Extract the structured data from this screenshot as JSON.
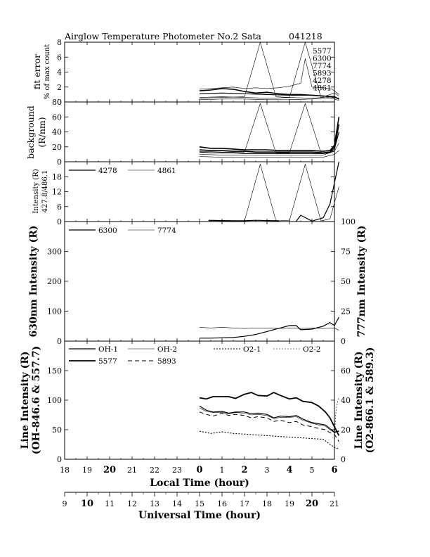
{
  "header": {
    "title": "Airglow Temperature Photometer No.2  Sata",
    "date": "041218"
  },
  "chart_data": [
    {
      "panel": "fit-error",
      "type": "line",
      "ylabel": "fit error",
      "ylabel2": "% of max count",
      "ylim": [
        0,
        8
      ],
      "yticks": [
        "0",
        "2",
        "4",
        "6",
        "8"
      ],
      "legend": [
        "5577",
        "6300",
        "7774",
        "5893",
        "4278",
        "4861"
      ],
      "series": [
        {
          "name": "5577",
          "stroke": 1.6,
          "x": [
            0,
            0.5,
            1,
            1.5,
            2,
            2.5,
            3,
            3.5,
            4,
            4.5,
            5,
            5.5,
            6,
            6.2
          ],
          "y": [
            1.5,
            1.6,
            1.8,
            1.7,
            1.4,
            1.2,
            1.3,
            1.1,
            1.0,
            1.0,
            0.9,
            0.8,
            0.7,
            0.4
          ]
        },
        {
          "name": "6300",
          "stroke": 0.6,
          "x": [
            0,
            0.5,
            1,
            1.5,
            2,
            2.5,
            3,
            3.5,
            4,
            4.5,
            4.7,
            5,
            5.5,
            5.9,
            6.2
          ],
          "y": [
            1.7,
            1.8,
            1.9,
            2.0,
            1.8,
            1.9,
            1.8,
            1.9,
            2.1,
            2.5,
            5.8,
            2.0,
            1.9,
            1.7,
            1.0
          ]
        },
        {
          "name": "7774",
          "stroke": 0.6,
          "x": [
            0,
            1,
            2,
            2.7,
            3.4,
            4,
            4.7,
            5.4,
            6,
            6.2
          ],
          "y": [
            0.5,
            0.6,
            0.7,
            8.0,
            0.7,
            0.6,
            8.0,
            0.6,
            1.2,
            0.8
          ]
        },
        {
          "name": "5893",
          "stroke": 1.2,
          "x": [
            0,
            1,
            2,
            3,
            4,
            5,
            5.5,
            6,
            6.2
          ],
          "y": [
            1.1,
            1.2,
            1.1,
            1.0,
            0.9,
            0.9,
            0.8,
            0.6,
            0.5
          ]
        },
        {
          "name": "4278",
          "stroke": 0.6,
          "x": [
            0,
            1,
            2,
            3,
            4,
            5,
            5.5,
            6,
            6.2
          ],
          "y": [
            0.3,
            0.4,
            0.4,
            0.3,
            0.3,
            0.4,
            0.5,
            0.8,
            0.3
          ]
        },
        {
          "name": "4861",
          "stroke": 0.6,
          "x": [
            0,
            1,
            2,
            3,
            4,
            5,
            5.5,
            6,
            6.2
          ],
          "y": [
            0.6,
            0.7,
            0.6,
            0.5,
            0.6,
            0.5,
            0.6,
            0.4,
            0.2
          ]
        }
      ]
    },
    {
      "panel": "background",
      "type": "line",
      "ylabel": "background",
      "ylabel2": "(R/nm)",
      "ylim": [
        0,
        80
      ],
      "yticks": [
        "0",
        "20",
        "40",
        "60",
        "80"
      ],
      "series": [
        {
          "name": "b1",
          "stroke": 1.6,
          "x": [
            0,
            0.5,
            1,
            1.5,
            2,
            2.5,
            3,
            3.5,
            4,
            4.5,
            5,
            5.5,
            5.8,
            6,
            6.2
          ],
          "y": [
            20,
            18,
            18,
            17,
            16,
            16,
            16,
            15,
            15,
            15,
            15,
            14,
            15,
            22,
            60
          ]
        },
        {
          "name": "b2",
          "stroke": 1.6,
          "x": [
            0,
            0.5,
            1,
            1.5,
            2,
            2.5,
            3,
            3.5,
            4,
            4.5,
            5,
            5.5,
            5.8,
            6,
            6.2
          ],
          "y": [
            16,
            15,
            15,
            14,
            14,
            13,
            13,
            13,
            13,
            13,
            13,
            12,
            13,
            20,
            50
          ]
        },
        {
          "name": "b3",
          "stroke": 1.2,
          "x": [
            0,
            0.5,
            1,
            1.5,
            2,
            2.5,
            3,
            3.5,
            4,
            4.5,
            5,
            5.5,
            5.8,
            6,
            6.2
          ],
          "y": [
            13,
            12,
            12,
            12,
            11,
            11,
            11,
            11,
            11,
            11,
            11,
            11,
            12,
            17,
            40
          ]
        },
        {
          "name": "b4",
          "stroke": 0.6,
          "x": [
            0,
            1,
            2,
            3,
            4,
            5,
            5.5,
            6,
            6.2
          ],
          "y": [
            10,
            9,
            9,
            9,
            9,
            9,
            9,
            14,
            25
          ]
        },
        {
          "name": "b5",
          "stroke": 0.6,
          "x": [
            0,
            1,
            2,
            3,
            4,
            5,
            5.5,
            6,
            6.2
          ],
          "y": [
            7,
            6,
            6,
            6,
            6,
            6,
            6,
            10,
            15
          ]
        },
        {
          "name": "b6",
          "stroke": 0.6,
          "x": [
            0,
            1,
            2,
            2.7,
            3.4,
            4,
            4.7,
            5.4,
            6,
            6.2
          ],
          "y": [
            14,
            13,
            13,
            78,
            12,
            12,
            78,
            12,
            14,
            50
          ]
        }
      ]
    },
    {
      "panel": "blue-lines",
      "type": "line",
      "ylabel": "Intensity (R)",
      "ylabel2": "427.8/486.1",
      "ylim": [
        0,
        24
      ],
      "yticks": [
        "0",
        "6",
        "12",
        "18"
      ],
      "legend": [
        "4278",
        "4861"
      ],
      "series": [
        {
          "name": "4278",
          "stroke": 1.2,
          "x": [
            0.4,
            1,
            1.5,
            2,
            2.5,
            3,
            3.5,
            4,
            4.5,
            5,
            5.5,
            5.8,
            6.2
          ],
          "y": [
            0.5,
            0.4,
            0.3,
            0.3,
            0.5,
            0.4,
            0.3,
            -3.5,
            2.5,
            0.2,
            1.5,
            7,
            24
          ]
        },
        {
          "name": "4861",
          "stroke": 0.6,
          "x": [
            0.4,
            1,
            1.5,
            2,
            2.7,
            3.4,
            4,
            4.7,
            5.4,
            5.8,
            6.2
          ],
          "y": [
            0.3,
            0.3,
            0.2,
            0.3,
            23,
            0.3,
            0.4,
            23,
            0.3,
            1,
            14
          ]
        }
      ]
    },
    {
      "panel": "630-777",
      "type": "line",
      "ylabel": "630nm Intensity (R)",
      "ylabel_right": "777nm Intensity (R)",
      "ylim": [
        0,
        400
      ],
      "ylim_right": [
        0,
        100
      ],
      "yticks": [
        "0",
        "100",
        "200",
        "300"
      ],
      "yticks_right": [
        "0",
        "25",
        "50",
        "75",
        "100"
      ],
      "legend": [
        "6300",
        "7774"
      ],
      "series": [
        {
          "name": "6300",
          "stroke": 1.2,
          "axis": "left",
          "x": [
            0,
            0.5,
            1,
            1.5,
            2,
            2.5,
            3,
            3.5,
            4,
            4.3,
            4.5,
            5,
            5.5,
            5.8,
            6,
            6.2
          ],
          "y": [
            10,
            10,
            11,
            12,
            16,
            22,
            32,
            42,
            52,
            52,
            38,
            40,
            50,
            62,
            52,
            80
          ]
        },
        {
          "name": "7774",
          "stroke": 0.6,
          "axis": "right",
          "x": [
            0,
            0.5,
            1,
            1.5,
            2,
            2.5,
            3,
            3.5,
            4,
            4.5,
            5,
            5.5,
            6,
            6.2
          ],
          "y": [
            11.5,
            11,
            11.5,
            11,
            10.5,
            11,
            11,
            10.5,
            11,
            10.5,
            11,
            10.5,
            11,
            9
          ]
        }
      ]
    },
    {
      "panel": "oh-o2",
      "type": "line",
      "ylabel": "Line Intensity (R)",
      "ylabel2": "(OH-846.6 & 557.7)",
      "ylabel_right": "Line Intensity (R)",
      "ylabel2_right": "(O2-866.1 & 589.3)",
      "ylim": [
        0,
        200
      ],
      "ylim_right": [
        0,
        80
      ],
      "yticks": [
        "0",
        "50",
        "100",
        "150"
      ],
      "yticks_right": [
        "0",
        "20",
        "40",
        "60"
      ],
      "legend": [
        "OH-1",
        "OH-2",
        "O2-1",
        "O2-2",
        "5577",
        "5893"
      ],
      "series": [
        {
          "name": "OH-1",
          "stroke": 1.2,
          "dash": "",
          "axis": "left",
          "x": [
            0,
            0.3,
            0.6,
            1,
            1.3,
            1.6,
            2,
            2.3,
            2.6,
            3,
            3.3,
            3.6,
            4,
            4.3,
            4.6,
            5,
            5.3,
            5.6,
            5.8,
            6,
            6.2
          ],
          "y": [
            90,
            83,
            80,
            81,
            78,
            80,
            80,
            77,
            78,
            76,
            70,
            73,
            72,
            74,
            68,
            62,
            60,
            58,
            52,
            46,
            48
          ]
        },
        {
          "name": "OH-2",
          "stroke": 0.6,
          "dash": "",
          "axis": "left",
          "x": [
            0,
            0.3,
            0.6,
            1,
            1.3,
            1.6,
            2,
            2.3,
            2.6,
            3,
            3.3,
            3.6,
            4,
            4.3,
            4.6,
            5,
            5.3,
            5.6,
            5.8,
            6,
            6.2
          ],
          "y": [
            87,
            81,
            79,
            79,
            77,
            79,
            78,
            75,
            76,
            74,
            69,
            71,
            71,
            72,
            66,
            61,
            58,
            56,
            50,
            45,
            47
          ]
        },
        {
          "name": "O2-1",
          "stroke": 1.1,
          "dash": "2,2",
          "axis": "right",
          "x": [
            0,
            0.5,
            1,
            1.5,
            2,
            2.5,
            3,
            3.5,
            4,
            4.5,
            5,
            5.5,
            6,
            6.2
          ],
          "y": [
            19,
            17.5,
            18.5,
            17.5,
            17,
            16.5,
            16,
            15.5,
            15,
            14.5,
            14,
            13.5,
            8,
            7
          ]
        },
        {
          "name": "O2-2",
          "stroke": 0.6,
          "dash": "2,2",
          "axis": "right",
          "x": [
            6.0,
            6.05,
            6.1,
            6.15,
            6.2
          ],
          "y": [
            10,
            30,
            35,
            40,
            42
          ]
        },
        {
          "name": "5577",
          "stroke": 1.8,
          "dash": "",
          "axis": "left",
          "x": [
            0,
            0.3,
            0.6,
            1,
            1.3,
            1.6,
            2,
            2.3,
            2.6,
            3,
            3.3,
            3.6,
            4,
            4.3,
            4.6,
            5,
            5.3,
            5.6,
            5.8,
            6,
            6.2
          ],
          "y": [
            104,
            102,
            106,
            106,
            106,
            103,
            110,
            113,
            108,
            107,
            113,
            108,
            102,
            104,
            98,
            96,
            90,
            80,
            70,
            55,
            40
          ]
        },
        {
          "name": "5893",
          "stroke": 1.0,
          "dash": "6,4",
          "axis": "left",
          "x": [
            0,
            0.3,
            0.6,
            1,
            1.3,
            1.6,
            2,
            2.3,
            2.6,
            3,
            3.3,
            3.6,
            4,
            4.3,
            4.6,
            5,
            5.3,
            5.6,
            5.8,
            6,
            6.2
          ],
          "y": [
            80,
            76,
            73,
            78,
            74,
            76,
            74,
            70,
            72,
            70,
            64,
            66,
            62,
            64,
            58,
            55,
            52,
            50,
            45,
            42,
            30
          ]
        }
      ]
    }
  ],
  "x_axis_local": {
    "label": "Local Time (hour)",
    "ticks": [
      "18",
      "19",
      "20",
      "21",
      "22",
      "23",
      "0",
      "1",
      "2",
      "3",
      "4",
      "5",
      "6"
    ],
    "bold_ticks": [
      "20",
      "0",
      "2",
      "4",
      "6"
    ]
  },
  "x_axis_ut": {
    "label": "Universal Time (hour)",
    "ticks": [
      "9",
      "10",
      "11",
      "12",
      "13",
      "14",
      "15",
      "16",
      "17",
      "18",
      "19",
      "20",
      "21"
    ],
    "bold_ticks": [
      "10",
      "20"
    ]
  }
}
